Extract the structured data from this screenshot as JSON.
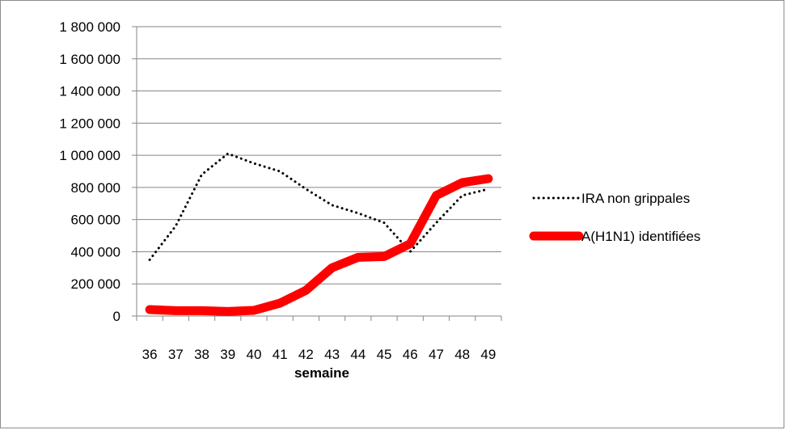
{
  "chart_data": {
    "type": "line",
    "title": "",
    "xlabel": "semaine",
    "ylabel": "",
    "categories": [
      "36",
      "37",
      "38",
      "39",
      "40",
      "41",
      "42",
      "43",
      "44",
      "45",
      "46",
      "47",
      "48",
      "49"
    ],
    "ylim": [
      0,
      1800000
    ],
    "yticks": [
      0,
      200000,
      400000,
      600000,
      800000,
      1000000,
      1200000,
      1400000,
      1600000,
      1800000
    ],
    "ytick_labels": [
      "0",
      "200 000",
      "400 000",
      "600 000",
      "800 000",
      "1 000 000",
      "1 200 000",
      "1 400 000",
      "1 600 000",
      "1 800 000"
    ],
    "grid": true,
    "legend_position": "right",
    "series": [
      {
        "name": "IRA non grippales",
        "style": "dotted",
        "color": "#000000",
        "values": [
          350000,
          560000,
          880000,
          1010000,
          950000,
          900000,
          790000,
          690000,
          640000,
          580000,
          400000,
          580000,
          750000,
          790000
        ]
      },
      {
        "name": "A(H1N1) identifiées",
        "style": "solid-thick",
        "color": "#ff0000",
        "values": [
          40000,
          33000,
          33000,
          28000,
          35000,
          80000,
          160000,
          300000,
          365000,
          370000,
          450000,
          750000,
          830000,
          855000
        ]
      }
    ]
  }
}
